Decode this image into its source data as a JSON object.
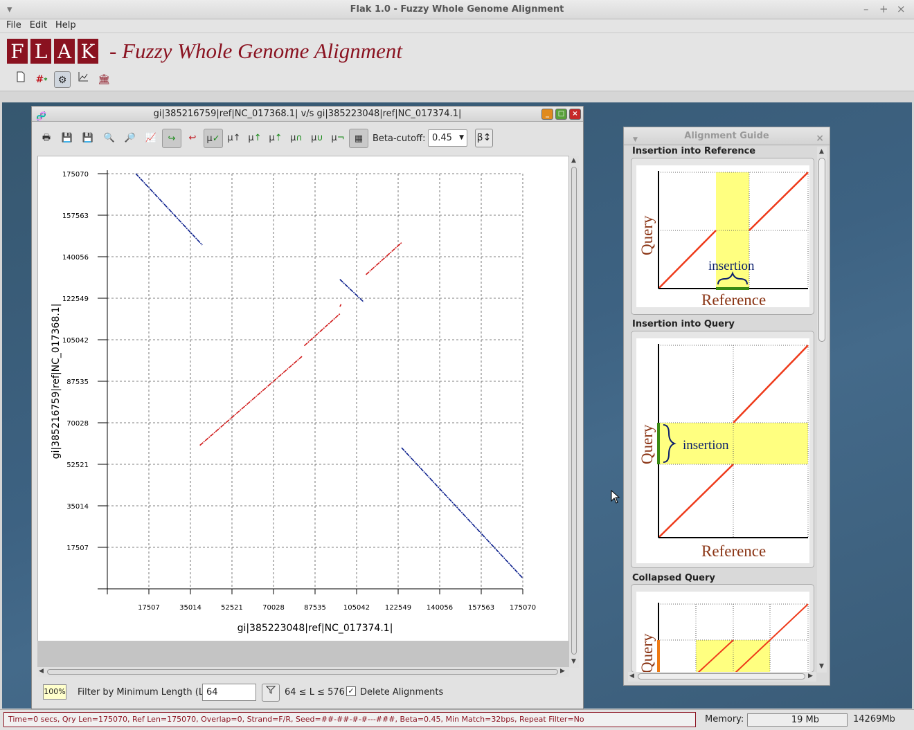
{
  "window": {
    "title": "Flak 1.0 - Fuzzy Whole Genome Alignment"
  },
  "menu": {
    "items": [
      "File",
      "Edit",
      "Help"
    ]
  },
  "banner": {
    "logo_letters": [
      "F",
      "L",
      "A",
      "K"
    ],
    "title": "- Fuzzy Whole Genome Alignment"
  },
  "plot_window": {
    "title": "gi|385216759|ref|NC_017368.1| v/s gi|385223048|ref|NC_017374.1|",
    "beta_label": "Beta-cutoff:",
    "beta_value": "0.45",
    "beta_button": "β↕"
  },
  "plot_bottom": {
    "zoom": "100%",
    "filter_label": "Filter by Minimum Length (L)",
    "filter_value": "64",
    "range_text": "64 ≤ L ≤ 576",
    "delete_label": "Delete Alignments",
    "delete_checked": true
  },
  "guide": {
    "title": "Alignment Guide",
    "sections": [
      {
        "label": "Insertion into Reference",
        "xlabel": "Reference",
        "ylabel": "Query",
        "annotation": "insertion"
      },
      {
        "label": "Insertion into Query",
        "xlabel": "Reference",
        "ylabel": "Query",
        "annotation": "insertion"
      },
      {
        "label": "Collapsed Query",
        "ylabel": "Query"
      }
    ]
  },
  "status": {
    "text": "Time=0 secs, Qry Len=175070, Ref Len=175070, Overlap=0, Strand=F/R, Seed=##-##-#-#---###, Beta=0.45, Min Match=32bps, Repeat Filter=No",
    "memory_label": "Memory:",
    "memory_used": "19 Mb",
    "memory_total": "14269Mb"
  },
  "chart_data": {
    "type": "scatter",
    "xlabel": "gi|385223048|ref|NC_017374.1|",
    "ylabel": "gi|385216759|ref|NC_017368.1|",
    "xlim": [
      0,
      175070
    ],
    "ylim": [
      0,
      175070
    ],
    "x_ticks": [
      "17507",
      "35014",
      "52521",
      "70028",
      "87535",
      "105042",
      "122549",
      "140056",
      "157563",
      "175070"
    ],
    "y_ticks": [
      "17507",
      "35014",
      "52521",
      "70028",
      "87535",
      "105042",
      "122549",
      "140056",
      "157563",
      "175070"
    ],
    "grid": true,
    "colors": {
      "forward": "#d01818",
      "reverse": "#0a1e8c"
    },
    "series": [
      {
        "strand": "reverse",
        "segments": [
          [
            12000,
            175070,
            40000,
            145000
          ]
        ]
      },
      {
        "strand": "forward",
        "segments": [
          [
            39000,
            60500,
            82000,
            98000
          ],
          [
            83000,
            102500,
            98000,
            116000
          ],
          [
            98000,
            119000,
            98500,
            120000
          ]
        ]
      },
      {
        "strand": "forward",
        "segments": [
          [
            109000,
            132500,
            124000,
            146000
          ]
        ]
      },
      {
        "strand": "reverse",
        "segments": [
          [
            98000,
            130500,
            108000,
            121000
          ]
        ]
      },
      {
        "strand": "reverse",
        "segments": [
          [
            124000,
            59500,
            175070,
            4500
          ]
        ]
      }
    ]
  }
}
